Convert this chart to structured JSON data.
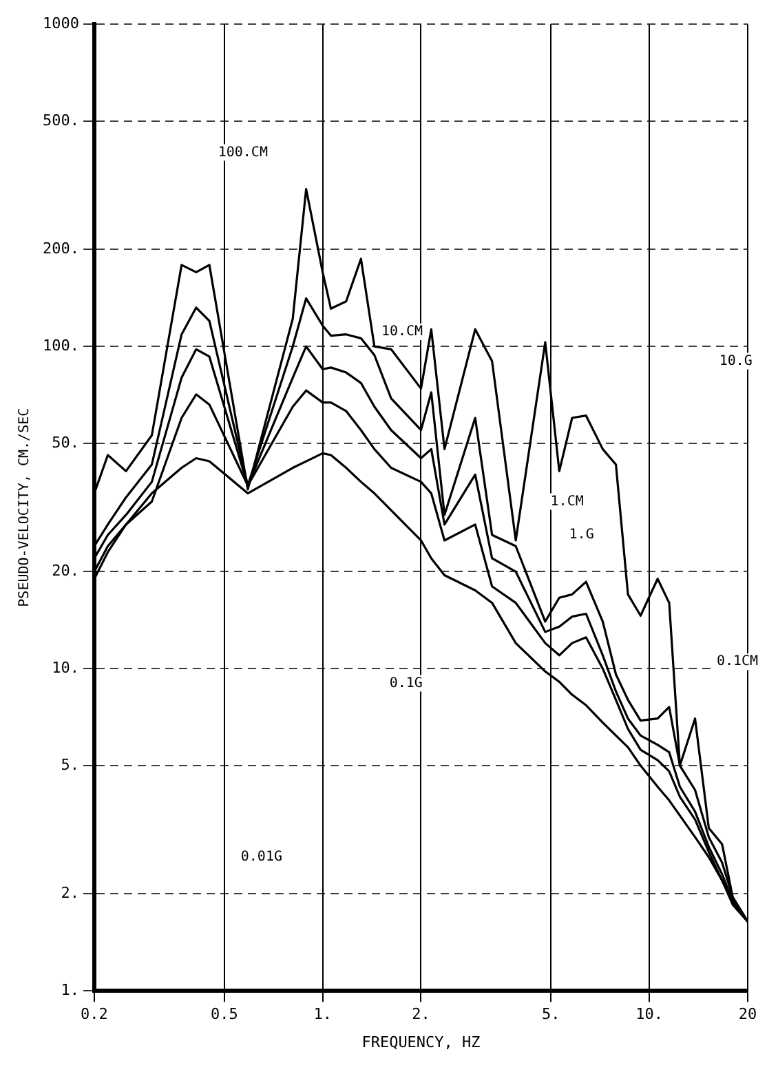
{
  "chart_data": {
    "type": "line",
    "xlabel": "FREQUENCY, HZ",
    "ylabel": "PSEUDO-VELOCITY, CM./SEC",
    "x": [
      0.2,
      0.22,
      0.25,
      0.3,
      0.37,
      0.41,
      0.45,
      0.59,
      0.81,
      0.89,
      1.0,
      1.06,
      1.18,
      1.31,
      1.44,
      1.62,
      2.0,
      2.15,
      2.36,
      2.93,
      3.3,
      3.9,
      4.8,
      5.3,
      5.8,
      6.4,
      7.2,
      7.9,
      8.6,
      9.4,
      10.6,
      11.5,
      12.4,
      13.8,
      15.2,
      16.7,
      18,
      20
    ],
    "series": [
      {
        "color": "#000000",
        "values": [
          35,
          46,
          41,
          53,
          179,
          170,
          179,
          36,
          122,
          308,
          170,
          131,
          138,
          187,
          100,
          98,
          74,
          113,
          48,
          113,
          90,
          25,
          103,
          41,
          60,
          61,
          48,
          43,
          17,
          14.6,
          19,
          16,
          5,
          7,
          3.2,
          2.85,
          1.95,
          1.64
        ]
      },
      {
        "color": "#000000",
        "values": [
          24,
          28,
          34,
          43,
          109,
          132,
          120,
          37,
          100,
          141,
          116,
          108,
          109,
          106,
          94,
          69,
          55,
          72,
          30,
          60,
          26,
          24,
          14,
          16.6,
          17,
          18.6,
          14,
          9.6,
          8,
          6.9,
          7,
          7.6,
          5,
          4.2,
          3,
          2.5,
          1.95,
          1.64
        ]
      },
      {
        "color": "#000000",
        "values": [
          22,
          26,
          30,
          38,
          80,
          98,
          93,
          37,
          80,
          100,
          85,
          86,
          83,
          77,
          65,
          55,
          45,
          48,
          28,
          40,
          22,
          20,
          13,
          13.5,
          14.5,
          14.8,
          11,
          8.5,
          7,
          6.2,
          5.8,
          5.5,
          4.3,
          3.6,
          2.8,
          2.3,
          1.9,
          1.64
        ]
      },
      {
        "color": "#000000",
        "values": [
          20,
          24,
          28,
          33,
          60,
          71,
          66,
          37,
          65,
          73,
          67,
          67,
          63,
          55,
          48,
          42,
          38,
          35,
          25,
          28,
          18,
          16,
          12,
          11,
          12,
          12.5,
          10,
          8,
          6.5,
          5.6,
          5.2,
          4.8,
          4,
          3.4,
          2.7,
          2.2,
          1.85,
          1.64
        ]
      },
      {
        "color": "#000000",
        "values": [
          19,
          23,
          28,
          35,
          42,
          45,
          44,
          35,
          42,
          44,
          46.6,
          46,
          42,
          38,
          35,
          31,
          25,
          22,
          19.5,
          17.5,
          16,
          12,
          9.8,
          9.1,
          8.3,
          7.7,
          6.8,
          6.2,
          5.7,
          5,
          4.3,
          3.9,
          3.5,
          3,
          2.6,
          2.2,
          1.9,
          1.64
        ]
      }
    ],
    "xlim": [
      0.2,
      20
    ],
    "ylim": [
      1,
      1000
    ],
    "xticks": [
      {
        "value": 0.2,
        "label": "0.2"
      },
      {
        "value": 0.5,
        "label": "0.5"
      },
      {
        "value": 1,
        "label": "1."
      },
      {
        "value": 2,
        "label": "2."
      },
      {
        "value": 5,
        "label": "5."
      },
      {
        "value": 10,
        "label": "10."
      },
      {
        "value": 20,
        "label": "20"
      }
    ],
    "yticks": [
      {
        "value": 1,
        "label": "1."
      },
      {
        "value": 2,
        "label": "2."
      },
      {
        "value": 5,
        "label": "5."
      },
      {
        "value": 10,
        "label": "10."
      },
      {
        "value": 20,
        "label": "20."
      },
      {
        "value": 50,
        "label": "50."
      },
      {
        "value": 100,
        "label": "100."
      },
      {
        "value": 200,
        "label": "200."
      },
      {
        "value": 500,
        "label": "500."
      },
      {
        "value": 1000,
        "label": "1000"
      }
    ],
    "log": "xy",
    "grid": true,
    "legend": false,
    "marker": "none",
    "line_style": "solid",
    "annotations": [
      {
        "text": "100.CM",
        "x": 0.57,
        "y": 400
      },
      {
        "text": "10.CM",
        "x": 1.75,
        "y": 111
      },
      {
        "text": "1.CM",
        "x": 5.6,
        "y": 33
      },
      {
        "text": "1.G",
        "x": 6.2,
        "y": 26
      },
      {
        "text": "10.G",
        "x": 18.4,
        "y": 90
      },
      {
        "text": "0.1CM",
        "x": 18.6,
        "y": 10.5
      },
      {
        "text": "0.1G",
        "x": 1.8,
        "y": 9
      },
      {
        "text": "0.01G",
        "x": 0.65,
        "y": 2.6
      }
    ]
  }
}
